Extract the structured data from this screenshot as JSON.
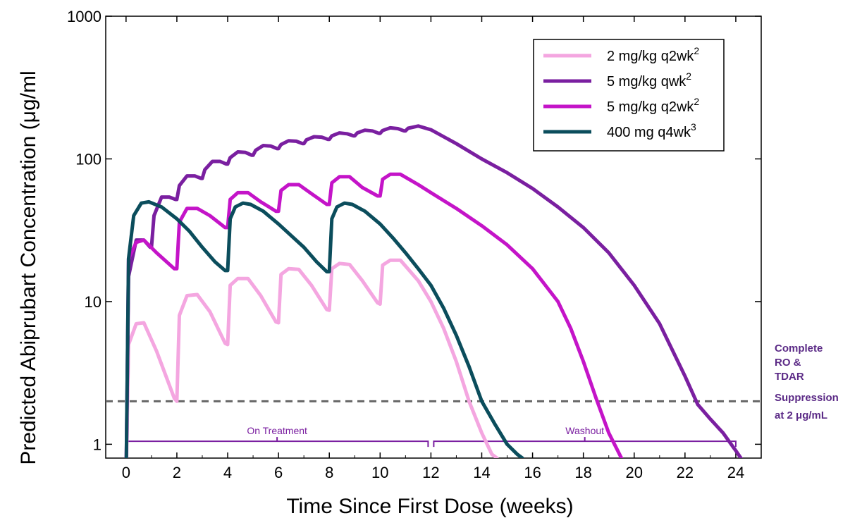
{
  "chart_data": {
    "type": "line",
    "title": "",
    "xlabel": "Time Since First Dose (weeks)",
    "ylabel": "Predicted Abiprubart Concentration (μg/mL)",
    "ylabel_visible": "Predicted Abiprubart Concentration (μg/ml",
    "xlim": [
      -0.8,
      25
    ],
    "ylim": [
      0.8,
      1000
    ],
    "y_scale": "log",
    "grid": false,
    "legend_position": "top-right",
    "x_ticks": [
      0,
      2,
      4,
      6,
      8,
      10,
      12,
      14,
      16,
      18,
      20,
      22,
      24
    ],
    "y_ticks": [
      1,
      10,
      100,
      1000
    ],
    "y_tick_labels": [
      "1",
      "10",
      "100",
      "1000"
    ],
    "series": [
      {
        "name": "2 mg/kg q2wk",
        "superscript": "2",
        "color": "#f4a6e0",
        "x": [
          0,
          0.1,
          0.4,
          0.7,
          1.2,
          1.9,
          2.0,
          2.1,
          2.4,
          2.8,
          3.3,
          3.9,
          4.0,
          4.1,
          4.4,
          4.8,
          5.3,
          5.9,
          6.0,
          6.1,
          6.4,
          6.8,
          7.3,
          7.9,
          8.0,
          8.1,
          8.4,
          8.8,
          9.3,
          9.9,
          10.0,
          10.1,
          10.4,
          10.8,
          11.5,
          12.0,
          12.5,
          13.0,
          13.5,
          14.0,
          14.4,
          14.6
        ],
        "y": [
          0.5,
          5.0,
          7.0,
          7.1,
          4.5,
          2.1,
          2.0,
          8.0,
          11.0,
          11.2,
          8.5,
          5.1,
          5.0,
          13.0,
          14.5,
          14.5,
          11.0,
          7.2,
          7.1,
          15.5,
          17.0,
          16.8,
          13.0,
          8.8,
          8.7,
          17.0,
          18.5,
          18.2,
          14.0,
          9.8,
          9.6,
          18.0,
          19.5,
          19.5,
          14.0,
          10.0,
          6.5,
          3.8,
          2.0,
          1.2,
          0.85,
          0.8
        ]
      },
      {
        "name": "5 mg/kg qwk",
        "superscript": "2",
        "color": "#7a1fa0",
        "x": [
          0,
          0.1,
          0.4,
          0.7,
          0.95,
          1.0,
          1.1,
          1.4,
          1.7,
          1.95,
          2.0,
          2.1,
          2.4,
          2.7,
          2.95,
          3.0,
          3.1,
          3.4,
          3.7,
          3.95,
          4.0,
          4.1,
          4.4,
          4.7,
          4.95,
          5.0,
          5.1,
          5.4,
          5.7,
          5.95,
          6.0,
          6.1,
          6.4,
          6.7,
          6.95,
          7.0,
          7.1,
          7.4,
          7.7,
          7.95,
          8.0,
          8.1,
          8.4,
          8.7,
          8.95,
          9.0,
          9.1,
          9.4,
          9.7,
          9.95,
          10.0,
          10.1,
          10.4,
          10.7,
          10.95,
          11.0,
          11.1,
          11.5,
          12.0,
          13.0,
          14.0,
          15.0,
          16.0,
          17.0,
          18.0,
          19.0,
          20.0,
          21.0,
          22.0,
          22.5,
          23.0,
          23.5,
          24.0,
          24.2
        ],
        "y": [
          0.5,
          15.0,
          27.0,
          27.0,
          24.0,
          24.0,
          40.0,
          54.0,
          54.0,
          52.0,
          52.0,
          65.0,
          76.0,
          76.0,
          73.0,
          73.0,
          84.0,
          96.0,
          96.0,
          92.0,
          92.0,
          102.0,
          112.0,
          111.0,
          106.0,
          106.0,
          115.0,
          124.0,
          123.0,
          118.0,
          118.0,
          126.0,
          134.0,
          133.0,
          128.0,
          128.0,
          136.0,
          143.0,
          142.0,
          137.0,
          137.0,
          145.0,
          152.0,
          150.0,
          145.0,
          145.0,
          152.0,
          159.0,
          157.0,
          151.0,
          151.0,
          158.0,
          165.0,
          163.0,
          157.0,
          157.0,
          164.0,
          170.0,
          160.0,
          128.0,
          100.0,
          80.0,
          62.0,
          46.0,
          33.0,
          22.0,
          13.0,
          7.0,
          3.0,
          1.9,
          1.5,
          1.2,
          0.9,
          0.8
        ]
      },
      {
        "name": "5 mg/kg q2wk",
        "superscript": "2",
        "color": "#c414c8",
        "x": [
          0,
          0.1,
          0.4,
          0.7,
          1.2,
          1.9,
          2.0,
          2.1,
          2.4,
          2.8,
          3.3,
          3.9,
          4.0,
          4.1,
          4.4,
          4.8,
          5.3,
          5.9,
          6.0,
          6.1,
          6.4,
          6.8,
          7.3,
          7.9,
          8.0,
          8.1,
          8.4,
          8.8,
          9.3,
          9.9,
          10.0,
          10.1,
          10.4,
          10.8,
          11.5,
          12.0,
          13.0,
          14.0,
          15.0,
          16.0,
          17.0,
          17.5,
          18.0,
          18.5,
          19.0,
          19.5
        ],
        "y": [
          0.5,
          20.0,
          26.0,
          27.0,
          22.0,
          17.0,
          17.0,
          36.0,
          45.0,
          45.0,
          40.0,
          33.0,
          33.0,
          52.0,
          58.0,
          58.0,
          50.0,
          43.0,
          43.0,
          60.0,
          66.0,
          66.0,
          57.0,
          48.0,
          48.0,
          68.0,
          75.0,
          75.0,
          63.0,
          55.0,
          55.0,
          72.0,
          78.0,
          78.0,
          66.0,
          58.0,
          45.0,
          34.0,
          25.0,
          17.0,
          10.0,
          6.5,
          3.8,
          2.1,
          1.2,
          0.8
        ]
      },
      {
        "name": "400 mg q4wk",
        "superscript": "3",
        "color": "#0b4d5c",
        "x": [
          0,
          0.1,
          0.3,
          0.6,
          0.9,
          1.4,
          2.0,
          2.5,
          3.0,
          3.5,
          3.9,
          4.0,
          4.1,
          4.3,
          4.6,
          4.9,
          5.4,
          6.0,
          6.5,
          7.0,
          7.5,
          7.9,
          8.0,
          8.1,
          8.3,
          8.6,
          8.9,
          9.4,
          10.0,
          10.5,
          11.0,
          11.5,
          12.0,
          12.5,
          13.0,
          13.5,
          14.0,
          14.5,
          15.0,
          15.4,
          15.6
        ],
        "y": [
          0.5,
          20.0,
          40.0,
          49.0,
          50.0,
          46.0,
          38.0,
          31.0,
          24.0,
          19.0,
          16.5,
          16.5,
          38.0,
          46.0,
          49.0,
          48.0,
          43.0,
          35.0,
          29.0,
          24.0,
          19.0,
          16.2,
          16.2,
          38.0,
          46.0,
          49.0,
          48.0,
          43.0,
          35.0,
          28.0,
          22.0,
          17.0,
          13.0,
          9.0,
          5.8,
          3.5,
          2.0,
          1.4,
          1.0,
          0.85,
          0.8
        ]
      }
    ],
    "reference_lines": [
      {
        "y": 2,
        "style": "dashed",
        "color": "#666666",
        "label": "Complete RO & TDAR Suppression at 2 μg/mL"
      }
    ],
    "annotations": [
      {
        "label": "On Treatment",
        "x_start": 0,
        "x_end": 12,
        "y": 1.05,
        "color": "#7a1fa0"
      },
      {
        "label": "Washout",
        "x_start": 12,
        "x_end": 24,
        "y": 1.05,
        "color": "#7a1fa0"
      }
    ],
    "side_note_color": "#5b2a86",
    "side_note_lines": [
      "Complete",
      "RO &",
      "TDAR",
      "Suppression",
      "at 2 μg/mL"
    ]
  }
}
